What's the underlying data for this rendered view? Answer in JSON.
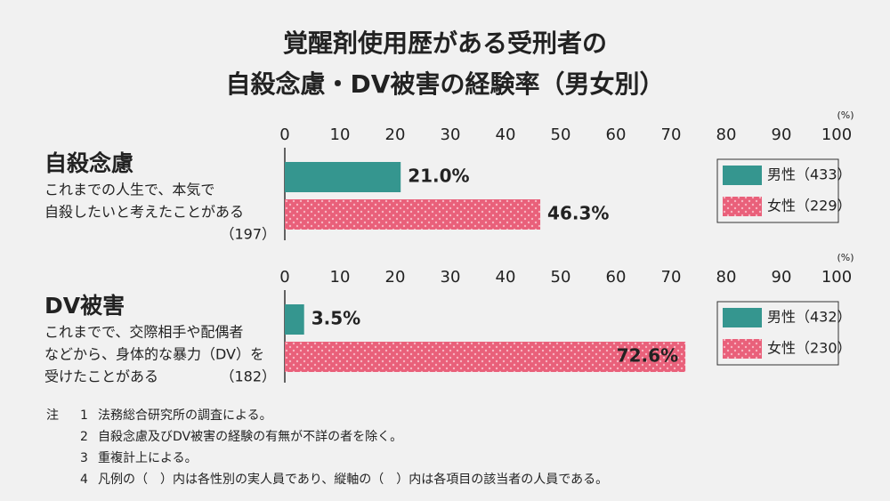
{
  "title": [
    "覚醒剤使用歴がある受刑者の",
    "自殺念慮・DV被害の経験率（男女別）"
  ],
  "chart_data": [
    {
      "type": "bar",
      "orientation": "horizontal",
      "categories": [
        "自殺念慮"
      ],
      "category_notes": [
        [
          "これまでの人生で、本気で",
          "自殺したいと考えたことがある"
        ]
      ],
      "category_counts": [
        "（197）"
      ],
      "x_unit": "(%)",
      "xlim": [
        0,
        100
      ],
      "xticks": [
        0,
        10,
        20,
        30,
        40,
        50,
        60,
        70,
        80,
        90,
        100
      ],
      "series": [
        {
          "name": "男性（433）",
          "color": "#35968f",
          "values": [
            21.0
          ],
          "value_labels": [
            "21.0%"
          ]
        },
        {
          "name": "女性（229）",
          "color": "#e9607a",
          "pattern": "dots",
          "values": [
            46.3
          ],
          "value_labels": [
            "46.3%"
          ]
        }
      ]
    },
    {
      "type": "bar",
      "orientation": "horizontal",
      "categories": [
        "DV被害"
      ],
      "category_notes": [
        [
          "これまでで、交際相手や配偶者",
          "などから、身体的な暴力（DV）を",
          "受けたことがある"
        ]
      ],
      "category_counts": [
        "（182）"
      ],
      "x_unit": "(%)",
      "xlim": [
        0,
        100
      ],
      "xticks": [
        0,
        10,
        20,
        30,
        40,
        50,
        60,
        70,
        80,
        90,
        100
      ],
      "series": [
        {
          "name": "男性（432）",
          "color": "#35968f",
          "values": [
            3.5
          ],
          "value_labels": [
            "3.5%"
          ]
        },
        {
          "name": "女性（230）",
          "color": "#e9607a",
          "pattern": "dots",
          "values": [
            72.6
          ],
          "value_labels": [
            "72.6%"
          ]
        }
      ]
    }
  ],
  "notes": {
    "label": "注",
    "items": [
      {
        "number": "1",
        "text": "法務総合研究所の調査による。"
      },
      {
        "number": "2",
        "text": "自殺念慮及びDV被害の経験の有無が不詳の者を除く。"
      },
      {
        "number": "3",
        "text": "重複計上による。"
      },
      {
        "number": "4",
        "text": "凡例の（　）内は各性別の実人員であり、縦軸の（　）内は各項目の該当者の人員である。"
      }
    ]
  }
}
